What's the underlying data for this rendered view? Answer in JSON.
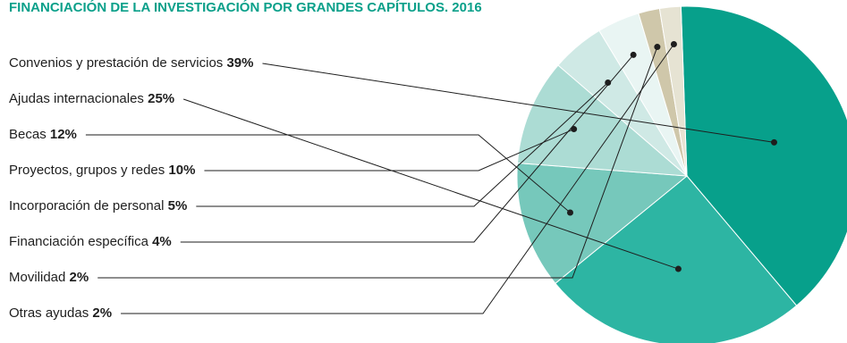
{
  "colors": {
    "title": "#0aa08a",
    "leader": "#1e1e1e",
    "slices": [
      "#07a08b",
      "#2db5a3",
      "#76c8bb",
      "#acdcd4",
      "#cfe9e5",
      "#e9f5f3",
      "#cfc7aa",
      "#e6e3d3"
    ]
  },
  "chart_data": {
    "type": "pie",
    "title": "FINANCIACIÓN DE LA INVESTIGACIÓN POR GRANDES CAPÍTULOS. 2016",
    "slices": [
      {
        "label": "Convenios y prestación de servicios",
        "value": 39,
        "value_label": "39%"
      },
      {
        "label": "Ajudas internacionales",
        "value": 25,
        "value_label": "25%"
      },
      {
        "label": "Becas",
        "value": 12,
        "value_label": "12%"
      },
      {
        "label": "Proyectos, grupos y redes",
        "value": 10,
        "value_label": "10%"
      },
      {
        "label": "Incorporación de personal",
        "value": 5,
        "value_label": "5%"
      },
      {
        "label": "Financiación específica",
        "value": 4,
        "value_label": "4%"
      },
      {
        "label": "Movilidad",
        "value": 2,
        "value_label": "2%"
      },
      {
        "label": "Otras ayudas",
        "value": 2,
        "value_label": "2%"
      }
    ]
  }
}
